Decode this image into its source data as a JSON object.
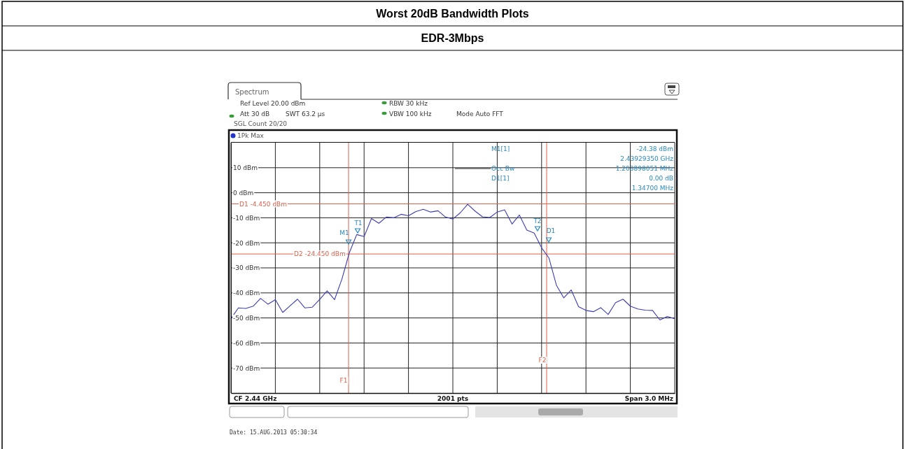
{
  "chart_data": {
    "type": "line",
    "title": "Worst 20dB Bandwidth Plots",
    "subtitle": "EDR-3Mbps",
    "categories": [
      null,
      null,
      null,
      null,
      null,
      null,
      null,
      null,
      null,
      null,
      null,
      null,
      null,
      null,
      null,
      null,
      null,
      null,
      null,
      null,
      null,
      null,
      null,
      null,
      null,
      null,
      null,
      null,
      null,
      null,
      null,
      null,
      null,
      null,
      null,
      null,
      null,
      null,
      null,
      null,
      null,
      null,
      null,
      null,
      null,
      null,
      null,
      null,
      null,
      null,
      null,
      null,
      null,
      null,
      null,
      null,
      null,
      null,
      null,
      null,
      null
    ],
    "ylim": [
      -80,
      20
    ],
    "yticks": [
      {
        "value": 10,
        "label": "10 dBm"
      },
      {
        "value": 0,
        "label": "0 dBm"
      },
      {
        "value": -10,
        "label": "-10 dBm"
      },
      {
        "value": -20,
        "label": "-20 dBm"
      },
      {
        "value": -30,
        "label": "-30 dBm"
      },
      {
        "value": -40,
        "label": "-40 dBm"
      },
      {
        "value": -50,
        "label": "-50 dBm"
      },
      {
        "value": -60,
        "label": "-60 dBm"
      },
      {
        "value": -70,
        "label": "-70 dBm"
      }
    ],
    "grid": true,
    "series": [
      {
        "color": "#3c3cb4",
        "values": [
          -50.3,
          -46.0,
          -46.2,
          -45.3,
          -42.2,
          -44.5,
          -42.7,
          -47.8,
          -45.1,
          -42.5,
          -46.0,
          -45.7,
          -42.6,
          -39.2,
          -42.7,
          -34.5,
          -24.0,
          -16.7,
          -17.5,
          -10.3,
          -12.2,
          -9.7,
          -10.0,
          -8.6,
          -9.2,
          -7.5,
          -6.6,
          -7.7,
          -7.2,
          -9.7,
          -10.5,
          -8.0,
          -4.6,
          -7.3,
          -9.6,
          -9.9,
          -7.7,
          -6.8,
          -12.5,
          -8.9,
          -14.9,
          -16.1,
          -22.0,
          -26.1,
          -36.9,
          -42.0,
          -38.8,
          -45.5,
          -47.0,
          -47.5,
          -45.9,
          -48.6,
          -43.9,
          -42.5,
          -45.3,
          -46.4,
          -46.9,
          -47.0,
          -50.8,
          -49.4,
          -50.3
        ]
      }
    ],
    "ref_lines": [
      {
        "axis": "y",
        "value": -4.45,
        "label": "D1 -4.450 dBm",
        "color": "#e0604c"
      },
      {
        "axis": "y",
        "value": -24.45,
        "label": "D2 -24.450 dBm",
        "color": "#e0604c"
      }
    ],
    "annotations": [
      "Spectrum",
      "Ref Level 20.00 dBm",
      "Att 30 dB",
      "SWT 63.2 µs",
      "RBW 30 kHz",
      "VBW 100 kHz",
      "Mode Auto FFT",
      "SGL Count 20/20",
      "1Pk Max",
      "M1[1]",
      "Occ Bw",
      "D1[1]",
      "-24.38 dBm",
      "2.43929350 GHz",
      "1.203898051 MHz",
      "0.00 dB",
      "1.34700 MHz",
      "CF 2.44 GHz",
      "2001 pts",
      "Span 3.0 MHz",
      "Date: 15.AUG.2013  05:30:34",
      "F1",
      "F2",
      "M1",
      "T1",
      "T2",
      "D1"
    ]
  }
}
